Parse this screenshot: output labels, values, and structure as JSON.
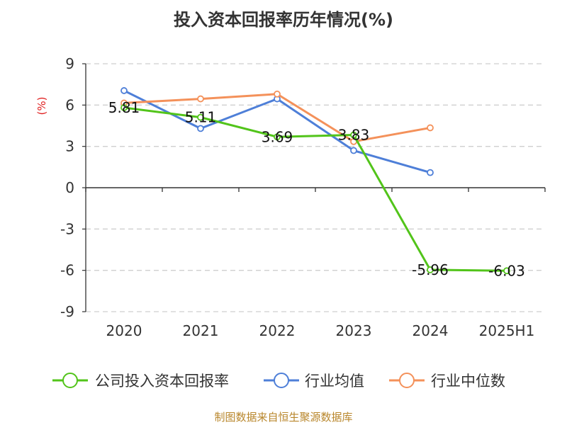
{
  "header": {
    "title": "投入资本回报率历年情况(%)"
  },
  "footer": {
    "source": "制图数据来自恒生聚源数据库"
  },
  "chart_data": {
    "type": "line",
    "title": "投入资本回报率历年情况(%)",
    "ylabel": "(%)",
    "xlabel": "",
    "categories": [
      "2020",
      "2021",
      "2022",
      "2023",
      "2024",
      "2025H1"
    ],
    "ylim": [
      -9,
      9
    ],
    "yticks": [
      9,
      6,
      3,
      0,
      -3,
      -6,
      -9
    ],
    "grid": true,
    "legend_position": "bottom",
    "series": [
      {
        "name": "公司投入资本回报率",
        "color": "#52c41a",
        "values": [
          5.81,
          5.11,
          3.69,
          3.83,
          -5.96,
          -6.03
        ],
        "labels": [
          "5.81",
          "5.11",
          "3.69",
          "3.83",
          "-5.96",
          "-6.03"
        ]
      },
      {
        "name": "行业均值",
        "color": "#4e7fd8",
        "values": [
          7.05,
          4.3,
          6.45,
          2.7,
          1.1,
          null
        ]
      },
      {
        "name": "行业中位数",
        "color": "#f4915a",
        "values": [
          6.15,
          6.45,
          6.8,
          3.35,
          4.35,
          null
        ]
      }
    ]
  }
}
